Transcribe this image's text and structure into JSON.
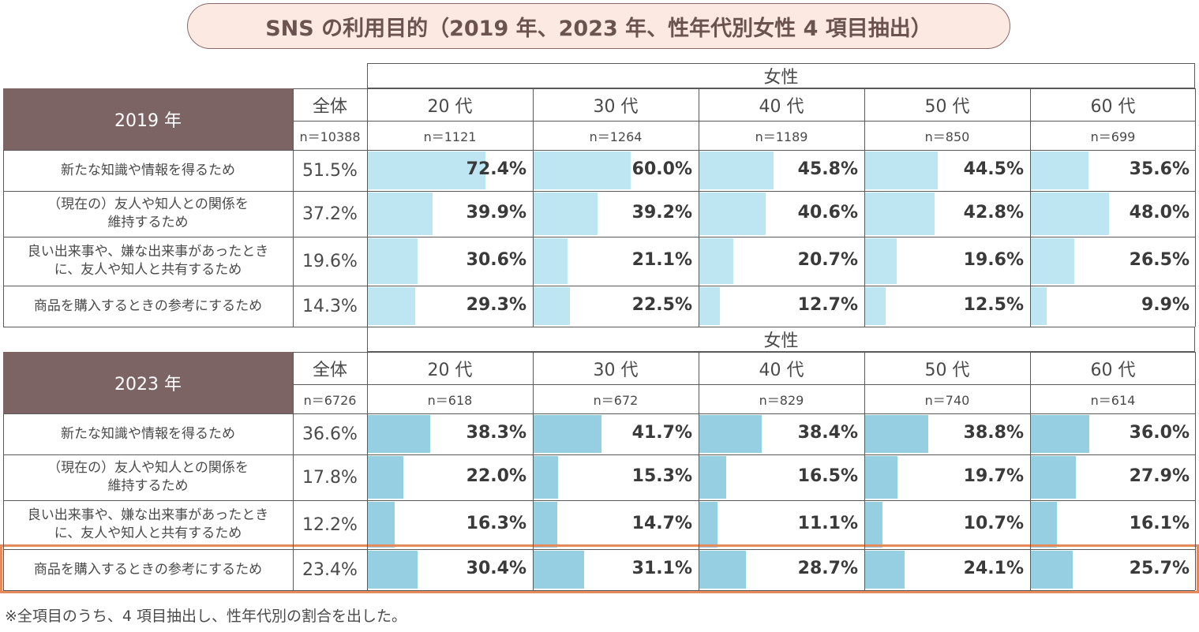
{
  "title": "SNS の利用目的（2019 年、2023 年、性年代別女性 4 項目抽出）",
  "footnote": "※全項目のうち、4 項目抽出し、性年代別の割合を出した。",
  "colors": {
    "header_bg": "#7d6464",
    "bar_2019": "#bde5f2",
    "bar_2023": "#95cfe1",
    "highlight": "#e58a5a",
    "title_bg": "#fbe9e2"
  },
  "chart_data": [
    {
      "type": "table",
      "year_label": "2019 年",
      "group_label": "女性",
      "total_label": "全体",
      "total_n": "n＝10388",
      "columns": [
        {
          "label": "20 代",
          "n": "n＝1121"
        },
        {
          "label": "30 代",
          "n": "n＝1264"
        },
        {
          "label": "40 代",
          "n": "n＝1189"
        },
        {
          "label": "50 代",
          "n": "n＝850"
        },
        {
          "label": "60 代",
          "n": "n＝699"
        }
      ],
      "rows": [
        {
          "label": "新たな知識や情報を得るため",
          "total": "51.5%",
          "values": [
            72.4,
            60.0,
            45.8,
            44.5,
            35.6
          ],
          "labels": [
            "72.4%",
            "60.0%",
            "45.8%",
            "44.5%",
            "35.6%"
          ]
        },
        {
          "label": "（現在の）友人や知人との関係を\n維持するため",
          "total": "37.2%",
          "values": [
            39.9,
            39.2,
            40.6,
            42.8,
            48.0
          ],
          "labels": [
            "39.9%",
            "39.2%",
            "40.6%",
            "42.8%",
            "48.0%"
          ]
        },
        {
          "label": "良い出来事や、嫌な出来事があったとき\nに、友人や知人と共有するため",
          "total": "19.6%",
          "values": [
            30.6,
            21.1,
            20.7,
            19.6,
            26.5
          ],
          "labels": [
            "30.6%",
            "21.1%",
            "20.7%",
            "19.6%",
            "26.5%"
          ]
        },
        {
          "label": "商品を購入するときの参考にするため",
          "total": "14.3%",
          "values": [
            29.3,
            22.5,
            12.7,
            12.5,
            9.9
          ],
          "labels": [
            "29.3%",
            "22.5%",
            "12.7%",
            "12.5%",
            "9.9%"
          ]
        }
      ]
    },
    {
      "type": "table",
      "year_label": "2023 年",
      "group_label": "女性",
      "total_label": "全体",
      "total_n": "n＝6726",
      "columns": [
        {
          "label": "20 代",
          "n": "n＝618"
        },
        {
          "label": "30 代",
          "n": "n＝672"
        },
        {
          "label": "40 代",
          "n": "n＝829"
        },
        {
          "label": "50 代",
          "n": "n＝740"
        },
        {
          "label": "60 代",
          "n": "n＝614"
        }
      ],
      "rows": [
        {
          "label": "新たな知識や情報を得るため",
          "total": "36.6%",
          "values": [
            38.3,
            41.7,
            38.4,
            38.8,
            36.0
          ],
          "labels": [
            "38.3%",
            "41.7%",
            "38.4%",
            "38.8%",
            "36.0%"
          ]
        },
        {
          "label": "（現在の）友人や知人との関係を\n維持するため",
          "total": "17.8%",
          "values": [
            22.0,
            15.3,
            16.5,
            19.7,
            27.9
          ],
          "labels": [
            "22.0%",
            "15.3%",
            "16.5%",
            "19.7%",
            "27.9%"
          ]
        },
        {
          "label": "良い出来事や、嫌な出来事があったとき\nに、友人や知人と共有するため",
          "total": "12.2%",
          "values": [
            16.3,
            14.7,
            11.1,
            10.7,
            16.1
          ],
          "labels": [
            "16.3%",
            "14.7%",
            "11.1%",
            "10.7%",
            "16.1%"
          ]
        },
        {
          "label": "商品を購入するときの参考にするため",
          "total": "23.4%",
          "values": [
            30.4,
            31.1,
            28.7,
            24.1,
            25.7
          ],
          "labels": [
            "30.4%",
            "31.1%",
            "28.7%",
            "24.1%",
            "25.7%"
          ],
          "highlighted": true
        }
      ]
    }
  ]
}
